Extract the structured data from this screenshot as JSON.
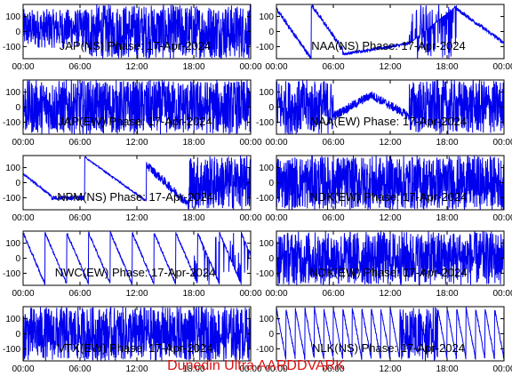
{
  "footer_text": "Dunedin Ultra AARDDVARK",
  "colors": {
    "trace": "#0000ee",
    "frame": "#000000",
    "footer": "#dd1111"
  },
  "x_ticks": [
    "00:00",
    "06:00",
    "12:00",
    "18:00",
    "00:00"
  ],
  "y_ticks": [
    "100",
    "0",
    "-100"
  ],
  "chart_data": [
    {
      "type": "line",
      "title": "JAP(NS) Phase: 17-Apr-2024",
      "xlabel": "",
      "ylabel": "",
      "xlim": [
        0,
        24
      ],
      "ylim": [
        -180,
        180
      ],
      "pattern": "dense",
      "dense_from": 6.5
    },
    {
      "type": "line",
      "title": "NAA(NS) Phase: 17-Apr-2024",
      "xlabel": "",
      "ylabel": "",
      "xlim": [
        0,
        24
      ],
      "ylim": [
        -180,
        180
      ],
      "pattern": "vshape"
    },
    {
      "type": "line",
      "title": "JAP(EW) Phase: 17-Apr-2024",
      "xlabel": "",
      "ylabel": "",
      "xlim": [
        0,
        24
      ],
      "ylim": [
        -180,
        180
      ],
      "pattern": "dense",
      "dense_from": 0
    },
    {
      "type": "line",
      "title": "NAA(EW) Phase: 17-Apr-2024",
      "xlabel": "",
      "ylabel": "",
      "xlim": [
        0,
        24
      ],
      "ylim": [
        -180,
        180
      ],
      "pattern": "noisy_v"
    },
    {
      "type": "line",
      "title": "NPM(NS) Phase: 17-Apr-2024",
      "xlabel": "",
      "ylabel": "",
      "xlim": [
        0,
        24
      ],
      "ylim": [
        -180,
        180
      ],
      "pattern": "npm"
    },
    {
      "type": "line",
      "title": "NDK(EW) Phase: 17-Apr-2024",
      "xlabel": "",
      "ylabel": "",
      "xlim": [
        0,
        24
      ],
      "ylim": [
        -180,
        180
      ],
      "pattern": "dense",
      "dense_from": 0
    },
    {
      "type": "line",
      "title": "NWC(EW) Phase: 17-Apr-2024",
      "xlabel": "",
      "ylabel": "",
      "xlim": [
        0,
        24
      ],
      "ylim": [
        -180,
        180
      ],
      "pattern": "sawtooth_down"
    },
    {
      "type": "line",
      "title": "NDK(EW) Phase: 17-Apr-2024",
      "xlabel": "",
      "ylabel": "",
      "xlim": [
        0,
        24
      ],
      "ylim": [
        -180,
        180
      ],
      "pattern": "dense",
      "dense_from": 0
    },
    {
      "type": "line",
      "title": "VTX(EW) Phase: 17-Apr-2024",
      "xlabel": "",
      "ylabel": "",
      "xlim": [
        0,
        24
      ],
      "ylim": [
        -180,
        180
      ],
      "pattern": "dense",
      "dense_from": 0
    },
    {
      "type": "line",
      "title": "NLK(NS) Phase: 17-Apr-2024",
      "xlabel": "",
      "ylabel": "",
      "xlim": [
        0,
        24
      ],
      "ylim": [
        -180,
        180
      ],
      "pattern": "nlk"
    }
  ]
}
